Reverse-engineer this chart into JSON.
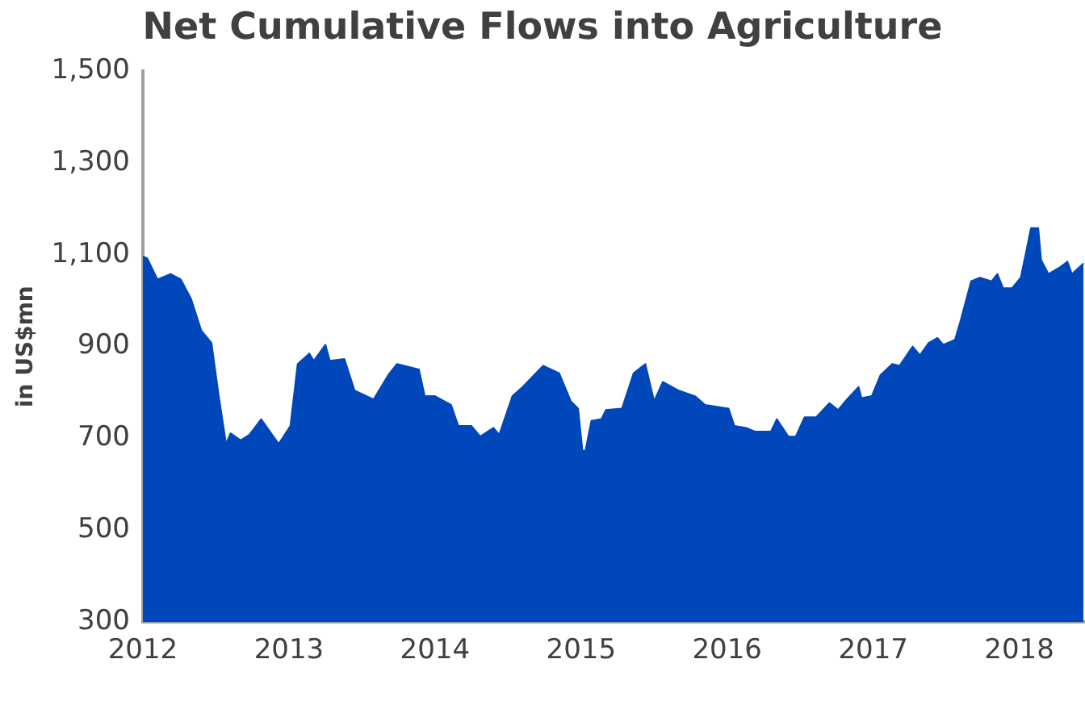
{
  "chart_data": {
    "type": "area",
    "title": "Net Cumulative Flows into Agriculture",
    "ylabel": "in US$mn",
    "xlim": [
      2012,
      2018.45
    ],
    "xticks": [
      2012,
      2013,
      2014,
      2015,
      2016,
      2017,
      2018
    ],
    "ylim": [
      300,
      1500
    ],
    "yticks": [
      300,
      500,
      700,
      900,
      {
        "value": 1100,
        "label": "1,100"
      },
      {
        "value": 1300,
        "label": "1,300"
      },
      {
        "value": 1500,
        "label": "1,500"
      }
    ],
    "grid": false,
    "legend": false,
    "series": [
      {
        "color": "#0047bb",
        "x": [
          2012.0,
          2012.03,
          2012.1,
          2012.19,
          2012.26,
          2012.33,
          2012.4,
          2012.47,
          2012.52,
          2012.57,
          2012.6,
          2012.67,
          2012.73,
          2012.81,
          2012.93,
          2013.01,
          2013.06,
          2013.14,
          2013.17,
          2013.25,
          2013.28,
          2013.38,
          2013.45,
          2013.58,
          2013.68,
          2013.74,
          2013.89,
          2013.93,
          2014.0,
          2014.11,
          2014.16,
          2014.25,
          2014.31,
          2014.4,
          2014.44,
          2014.53,
          2014.6,
          2014.74,
          2014.85,
          2014.93,
          2014.98,
          2015.01,
          2015.03,
          2015.07,
          2015.14,
          2015.17,
          2015.28,
          2015.36,
          2015.44,
          2015.5,
          2015.56,
          2015.67,
          2015.78,
          2015.85,
          2016.01,
          2016.05,
          2016.13,
          2016.19,
          2016.3,
          2016.34,
          2016.42,
          2016.47,
          2016.53,
          2016.61,
          2016.7,
          2016.76,
          2016.82,
          2016.9,
          2016.92,
          2016.99,
          2017.05,
          2017.13,
          2017.18,
          2017.27,
          2017.32,
          2017.38,
          2017.44,
          2017.48,
          2017.56,
          2017.6,
          2017.67,
          2017.73,
          2017.81,
          2017.85,
          2017.89,
          2017.95,
          2018.01,
          2018.05,
          2018.08,
          2018.13,
          2018.15,
          2018.2,
          2018.28,
          2018.33,
          2018.36,
          2018.44
        ],
        "values": [
          1096,
          1092,
          1046,
          1058,
          1046,
          1004,
          935,
          908,
          792,
          688,
          711,
          696,
          708,
          742,
          688,
          727,
          862,
          885,
          869,
          904,
          869,
          873,
          804,
          785,
          838,
          862,
          850,
          792,
          792,
          773,
          727,
          727,
          704,
          723,
          708,
          792,
          812,
          858,
          842,
          781,
          765,
          673,
          673,
          738,
          742,
          762,
          765,
          842,
          862,
          781,
          823,
          804,
          792,
          773,
          765,
          727,
          723,
          715,
          715,
          742,
          704,
          704,
          746,
          746,
          777,
          762,
          785,
          812,
          788,
          792,
          838,
          862,
          858,
          900,
          881,
          908,
          919,
          904,
          915,
          958,
          1042,
          1050,
          1042,
          1058,
          1027,
          1027,
          1050,
          1111,
          1158,
          1158,
          1088,
          1058,
          1073,
          1085,
          1058,
          1081
        ]
      }
    ]
  }
}
